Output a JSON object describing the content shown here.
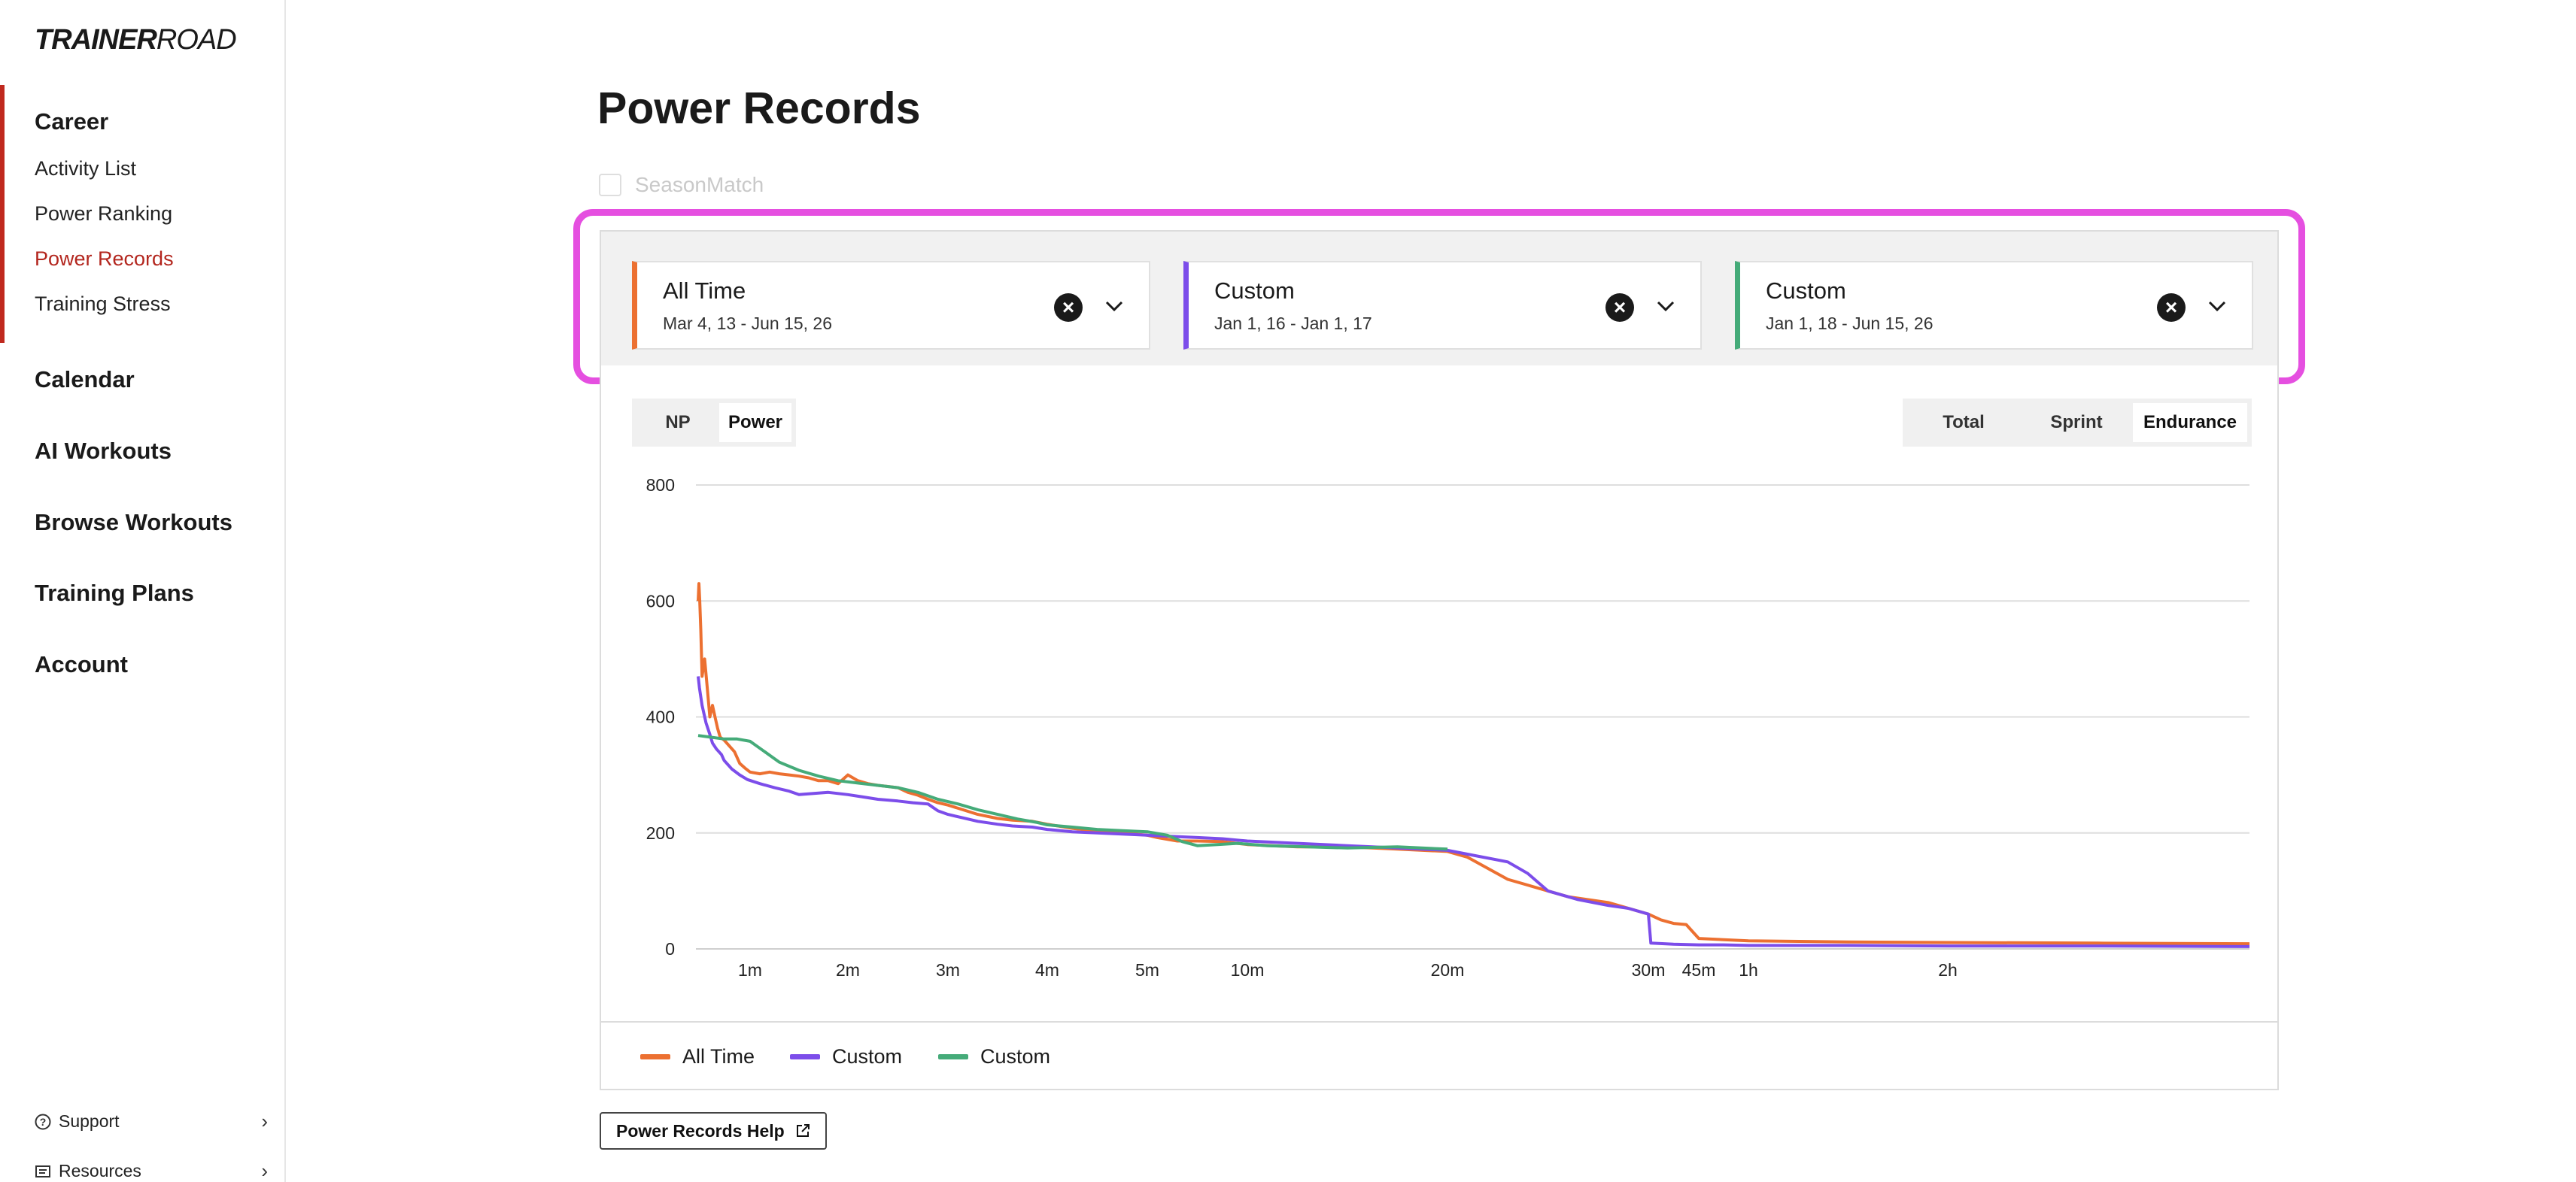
{
  "brand": {
    "logo_bold": "TRAINER",
    "logo_light": "ROAD"
  },
  "sidebar": {
    "career": "Career",
    "career_items": [
      "Activity List",
      "Power Ranking",
      "Power Records",
      "Training Stress"
    ],
    "active_item": "Power Records",
    "sections": [
      "Calendar",
      "AI Workouts",
      "Browse Workouts",
      "Training Plans",
      "Account"
    ],
    "bottom": [
      {
        "label": "Support",
        "icon": "help-circle-icon"
      },
      {
        "label": "Resources",
        "icon": "document-list-icon"
      }
    ]
  },
  "page": {
    "title": "Power Records",
    "seasonmatch_label": "SeasonMatch"
  },
  "filters": [
    {
      "name": "All Time",
      "range": "Mar 4, 13 - Jun 15, 26",
      "color": "#ec7031"
    },
    {
      "name": "Custom",
      "range": "Jan 1, 16 - Jan 1, 17",
      "color": "#7c4dea"
    },
    {
      "name": "Custom",
      "range": "Jan 1, 18 - Jun 15, 26",
      "color": "#45ab79"
    }
  ],
  "toggles": {
    "metric": [
      "NP",
      "Power"
    ],
    "metric_selected": "Power",
    "range": [
      "Total",
      "Sprint",
      "Endurance"
    ],
    "range_selected": "Endurance"
  },
  "chart_data": {
    "type": "line",
    "title": "",
    "xlabel": "",
    "ylabel": "",
    "y_ticks": [
      0,
      200,
      400,
      600,
      800
    ],
    "ylim": [
      0,
      800
    ],
    "x_ticks": [
      "1m",
      "2m",
      "3m",
      "4m",
      "5m",
      "10m",
      "20m",
      "30m",
      "45m",
      "1h",
      "2h"
    ],
    "grid": true,
    "legend_position": "bottom-left",
    "series": [
      {
        "name": "All Time",
        "color": "#ec7031",
        "points": [
          [
            0,
            600
          ],
          [
            0.03,
            630
          ],
          [
            0.06,
            600
          ],
          [
            0.1,
            550
          ],
          [
            0.15,
            470
          ],
          [
            0.25,
            500
          ],
          [
            0.35,
            450
          ],
          [
            0.45,
            400
          ],
          [
            0.55,
            420
          ],
          [
            0.65,
            400
          ],
          [
            0.75,
            380
          ],
          [
            0.85,
            365
          ],
          [
            1,
            360
          ],
          [
            1.2,
            350
          ],
          [
            1.4,
            340
          ],
          [
            1.6,
            320
          ],
          [
            1.8,
            312
          ],
          [
            2,
            305
          ],
          [
            2.2,
            302
          ],
          [
            2.4,
            305
          ],
          [
            2.6,
            302
          ],
          [
            2.8,
            300
          ],
          [
            3,
            298
          ],
          [
            3.2,
            295
          ],
          [
            3.4,
            290
          ],
          [
            3.6,
            290
          ],
          [
            3.8,
            285
          ],
          [
            4,
            300
          ],
          [
            4.2,
            290
          ],
          [
            4.4,
            285
          ],
          [
            4.6,
            282
          ],
          [
            4.8,
            280
          ],
          [
            5,
            278
          ],
          [
            5.2,
            270
          ],
          [
            5.4,
            265
          ],
          [
            5.6,
            258
          ],
          [
            5.8,
            252
          ],
          [
            6,
            248
          ],
          [
            6.3,
            240
          ],
          [
            6.6,
            232
          ],
          [
            7,
            225
          ],
          [
            7.3,
            222
          ],
          [
            7.7,
            220
          ],
          [
            8,
            215
          ],
          [
            8.5,
            208
          ],
          [
            9,
            203
          ],
          [
            9.5,
            200
          ],
          [
            10,
            196
          ],
          [
            10.2,
            192
          ],
          [
            10.6,
            186
          ],
          [
            11,
            186
          ],
          [
            11.5,
            185
          ],
          [
            12,
            180
          ],
          [
            12.5,
            176
          ],
          [
            13,
            176
          ],
          [
            13.5,
            172
          ],
          [
            14,
            168
          ],
          [
            14.2,
            158
          ],
          [
            14.6,
            120
          ],
          [
            15,
            100
          ],
          [
            15.2,
            90
          ],
          [
            15.6,
            80
          ],
          [
            16,
            60
          ],
          [
            16.5,
            50
          ],
          [
            17,
            44
          ],
          [
            17.5,
            42
          ],
          [
            18,
            18
          ],
          [
            19,
            16
          ],
          [
            20,
            14
          ],
          [
            21,
            12
          ],
          [
            22,
            11
          ],
          [
            23,
            10
          ],
          [
            24,
            9
          ]
        ]
      },
      {
        "name": "Custom",
        "color": "#7c4dea",
        "points": [
          [
            0,
            470
          ],
          [
            0.05,
            450
          ],
          [
            0.15,
            420
          ],
          [
            0.3,
            390
          ],
          [
            0.45,
            370
          ],
          [
            0.55,
            355
          ],
          [
            0.7,
            345
          ],
          [
            0.9,
            335
          ],
          [
            1,
            325
          ],
          [
            1.3,
            310
          ],
          [
            1.6,
            300
          ],
          [
            1.9,
            292
          ],
          [
            2.2,
            285
          ],
          [
            2.5,
            278
          ],
          [
            2.8,
            272
          ],
          [
            3,
            266
          ],
          [
            3.3,
            268
          ],
          [
            3.6,
            270
          ],
          [
            4,
            266
          ],
          [
            4.3,
            262
          ],
          [
            4.6,
            258
          ],
          [
            5,
            255
          ],
          [
            5.3,
            252
          ],
          [
            5.6,
            250
          ],
          [
            5.8,
            238
          ],
          [
            6,
            232
          ],
          [
            6.3,
            226
          ],
          [
            6.6,
            220
          ],
          [
            7,
            215
          ],
          [
            7.3,
            212
          ],
          [
            7.7,
            210
          ],
          [
            8,
            206
          ],
          [
            8.5,
            202
          ],
          [
            9,
            200
          ],
          [
            9.5,
            198
          ],
          [
            10,
            196
          ],
          [
            10.5,
            194
          ],
          [
            11,
            192
          ],
          [
            11.5,
            190
          ],
          [
            12,
            186
          ],
          [
            12.5,
            182
          ],
          [
            13,
            178
          ],
          [
            13.5,
            174
          ],
          [
            14,
            170
          ],
          [
            14.3,
            160
          ],
          [
            14.6,
            150
          ],
          [
            14.8,
            130
          ],
          [
            15,
            100
          ],
          [
            15.3,
            85
          ],
          [
            15.6,
            75
          ],
          [
            15.8,
            70
          ],
          [
            16,
            60
          ],
          [
            16.1,
            10
          ],
          [
            17,
            8
          ],
          [
            18,
            7
          ],
          [
            19,
            7
          ],
          [
            20,
            6
          ],
          [
            21,
            6
          ],
          [
            22,
            5
          ],
          [
            23,
            5
          ],
          [
            24,
            4
          ]
        ]
      },
      {
        "name": "Custom",
        "color": "#45ab79",
        "points": [
          [
            0,
            368
          ],
          [
            0.5,
            365
          ],
          [
            1,
            362
          ],
          [
            1.5,
            362
          ],
          [
            2,
            358
          ],
          [
            2.3,
            340
          ],
          [
            2.6,
            322
          ],
          [
            3,
            308
          ],
          [
            3.4,
            298
          ],
          [
            3.8,
            290
          ],
          [
            4.2,
            286
          ],
          [
            4.6,
            282
          ],
          [
            5,
            278
          ],
          [
            5.4,
            270
          ],
          [
            5.8,
            258
          ],
          [
            6.2,
            250
          ],
          [
            6.6,
            240
          ],
          [
            7,
            232
          ],
          [
            7.4,
            224
          ],
          [
            7.8,
            218
          ],
          [
            8,
            214
          ],
          [
            8.5,
            210
          ],
          [
            9,
            206
          ],
          [
            9.5,
            204
          ],
          [
            10,
            202
          ],
          [
            10.4,
            196
          ],
          [
            10.7,
            185
          ],
          [
            11,
            178
          ],
          [
            11.4,
            180
          ],
          [
            11.8,
            182
          ],
          [
            12.2,
            178
          ],
          [
            12.6,
            176
          ],
          [
            13,
            174
          ],
          [
            13.5,
            176
          ],
          [
            14,
            172
          ]
        ]
      }
    ]
  },
  "help": {
    "label": "Power Records Help"
  }
}
